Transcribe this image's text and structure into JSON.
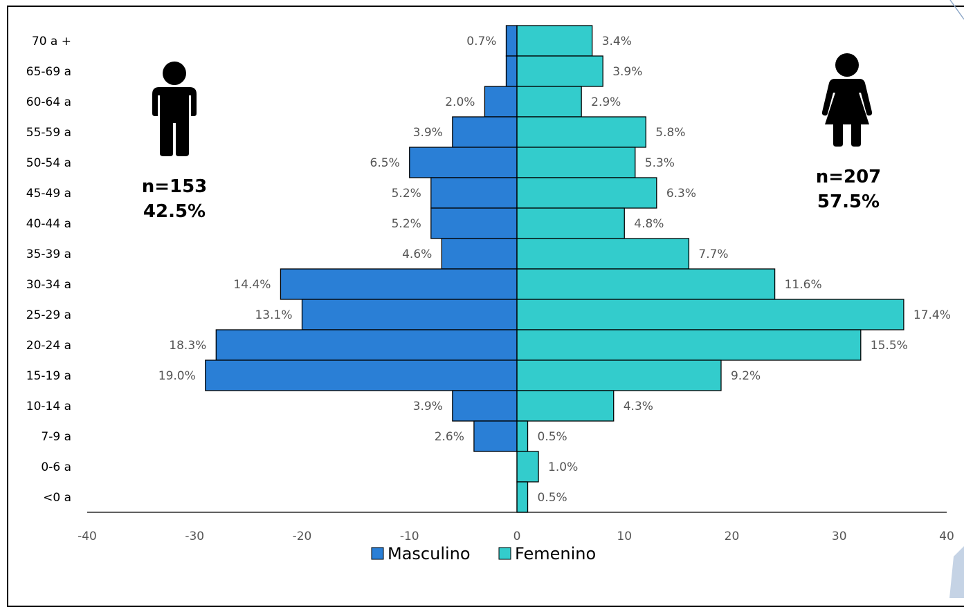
{
  "chart_data": {
    "type": "bar",
    "orientation": "horizontal",
    "categories": [
      "70 a +",
      "65-69 a",
      "60-64 a",
      "55-59 a",
      "50-54 a",
      "45-49 a",
      "40-44 a",
      "35-39 a",
      "30-34 a",
      "25-29 a",
      "20-24 a",
      "15-19 a",
      "10-14 a",
      "7-9 a",
      "0-6 a",
      "<0 a"
    ],
    "series": [
      {
        "name": "Masculino",
        "color": "#2a7fd6",
        "values": [
          -1,
          -1,
          -3,
          -6,
          -10,
          -8,
          -8,
          -7,
          -22,
          -20,
          -28,
          -29,
          -6,
          -4,
          0,
          0
        ],
        "labels": [
          "0.7%",
          "",
          "2.0%",
          "3.9%",
          "6.5%",
          "5.2%",
          "5.2%",
          "4.6%",
          "14.4%",
          "13.1%",
          "18.3%",
          "19.0%",
          "3.9%",
          "2.6%",
          "",
          ""
        ]
      },
      {
        "name": "Femenino",
        "color": "#33cccc",
        "values": [
          7,
          8,
          6,
          12,
          11,
          13,
          10,
          16,
          24,
          36,
          32,
          19,
          9,
          1,
          2,
          1
        ],
        "labels": [
          "3.4%",
          "3.9%",
          "2.9%",
          "5.8%",
          "5.3%",
          "6.3%",
          "4.8%",
          "7.7%",
          "11.6%",
          "17.4%",
          "15.5%",
          "9.2%",
          "4.3%",
          "0.5%",
          "1.0%",
          "0.5%"
        ]
      }
    ],
    "xlim": [
      -40,
      40
    ],
    "xticks": [
      "-40",
      "-30",
      "-20",
      "-10",
      "0",
      "10",
      "20",
      "30",
      "40"
    ],
    "grid": false,
    "legend_position": "bottom"
  },
  "male_summary": {
    "icon": "man-icon",
    "n": "n=153",
    "pct": "42.5%"
  },
  "female_summary": {
    "icon": "woman-icon",
    "n": "n=207",
    "pct": "57.5%"
  }
}
